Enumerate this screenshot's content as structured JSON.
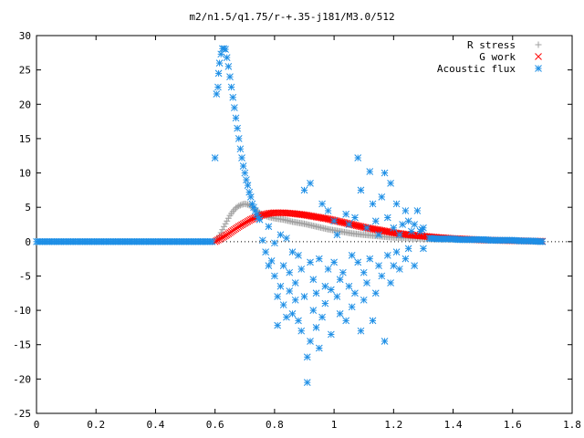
{
  "chart_data": {
    "type": "scatter",
    "title": "m2/n1.5/q1.75/r-+.35-j181/M3.0/512",
    "xlim": [
      0,
      1.8
    ],
    "ylim": [
      -25,
      30
    ],
    "xticks": [
      0,
      0.2,
      0.4,
      0.6,
      0.8,
      1,
      1.2,
      1.4,
      1.6,
      1.8
    ],
    "xtick_labels": [
      "0",
      "0.2",
      "0.4",
      "0.6",
      "0.8",
      "1",
      "1.2",
      "1.4",
      "1.6",
      "1.8"
    ],
    "yticks": [
      -25,
      -20,
      -15,
      -10,
      -5,
      0,
      5,
      10,
      15,
      20,
      25,
      30
    ],
    "ytick_labels": [
      "-25",
      "-20",
      "-15",
      "-10",
      "-5",
      "0",
      "5",
      "10",
      "15",
      "20",
      "25",
      "30"
    ],
    "legend_position": "top-right",
    "series": [
      {
        "name": "R stress",
        "color": "#a0a0a0",
        "marker": "plus",
        "points": [
          [
            0.6,
            0.0
          ],
          [
            0.61,
            0.5
          ],
          [
            0.62,
            1.3
          ],
          [
            0.63,
            2.2
          ],
          [
            0.64,
            3.0
          ],
          [
            0.65,
            3.8
          ],
          [
            0.66,
            4.4
          ],
          [
            0.67,
            4.9
          ],
          [
            0.68,
            5.2
          ],
          [
            0.69,
            5.4
          ],
          [
            0.7,
            5.5
          ],
          [
            0.71,
            5.4
          ],
          [
            0.72,
            5.2
          ],
          [
            0.73,
            4.9
          ],
          [
            0.74,
            4.5
          ],
          [
            0.75,
            4.2
          ],
          [
            0.76,
            3.9
          ],
          [
            0.78,
            3.6
          ],
          [
            0.8,
            3.4
          ],
          [
            0.83,
            3.2
          ],
          [
            0.86,
            2.9
          ],
          [
            0.9,
            2.6
          ],
          [
            0.94,
            2.2
          ],
          [
            0.98,
            1.8
          ],
          [
            1.02,
            1.5
          ],
          [
            1.06,
            1.2
          ],
          [
            1.1,
            1.0
          ],
          [
            1.15,
            0.8
          ],
          [
            1.2,
            0.6
          ],
          [
            1.25,
            0.5
          ],
          [
            1.3,
            0.4
          ],
          [
            1.35,
            0.35
          ],
          [
            1.4,
            0.3
          ],
          [
            1.45,
            0.25
          ],
          [
            1.5,
            0.2
          ],
          [
            1.55,
            0.15
          ],
          [
            1.6,
            0.1
          ],
          [
            1.65,
            0.05
          ],
          [
            1.7,
            0.0
          ]
        ]
      },
      {
        "name": "G work",
        "color": "#ff0000",
        "marker": "cross",
        "points": [
          [
            0.6,
            0.0
          ],
          [
            0.62,
            0.5
          ],
          [
            0.64,
            1.0
          ],
          [
            0.66,
            1.6
          ],
          [
            0.68,
            2.2
          ],
          [
            0.7,
            2.7
          ],
          [
            0.72,
            3.2
          ],
          [
            0.74,
            3.6
          ],
          [
            0.76,
            3.9
          ],
          [
            0.78,
            4.1
          ],
          [
            0.8,
            4.2
          ],
          [
            0.83,
            4.2
          ],
          [
            0.86,
            4.1
          ],
          [
            0.9,
            3.9
          ],
          [
            0.94,
            3.6
          ],
          [
            0.98,
            3.3
          ],
          [
            1.02,
            2.9
          ],
          [
            1.06,
            2.5
          ],
          [
            1.1,
            2.1
          ],
          [
            1.15,
            1.7
          ],
          [
            1.2,
            1.3
          ],
          [
            1.25,
            1.0
          ],
          [
            1.3,
            0.8
          ],
          [
            1.35,
            0.6
          ],
          [
            1.4,
            0.45
          ],
          [
            1.45,
            0.35
          ],
          [
            1.5,
            0.25
          ],
          [
            1.55,
            0.2
          ],
          [
            1.6,
            0.15
          ],
          [
            1.65,
            0.1
          ],
          [
            1.7,
            0.05
          ]
        ]
      },
      {
        "name": "Acoustic flux",
        "color": "#1e8fe6",
        "marker": "star",
        "points": [
          [
            0.0,
            0.0
          ],
          [
            0.05,
            0.0
          ],
          [
            0.1,
            0.0
          ],
          [
            0.15,
            0.0
          ],
          [
            0.2,
            0.0
          ],
          [
            0.25,
            0.0
          ],
          [
            0.3,
            0.0
          ],
          [
            0.35,
            0.0
          ],
          [
            0.4,
            0.0
          ],
          [
            0.45,
            0.0
          ],
          [
            0.5,
            0.0
          ],
          [
            0.55,
            0.0
          ],
          [
            0.59,
            0.0
          ],
          [
            0.6,
            12.2
          ],
          [
            0.605,
            21.5
          ],
          [
            0.61,
            22.5
          ],
          [
            0.612,
            24.5
          ],
          [
            0.615,
            26.0
          ],
          [
            0.62,
            27.3
          ],
          [
            0.625,
            28.1
          ],
          [
            0.63,
            28.1
          ],
          [
            0.635,
            28.0
          ],
          [
            0.64,
            26.8
          ],
          [
            0.645,
            25.5
          ],
          [
            0.65,
            24.0
          ],
          [
            0.655,
            22.5
          ],
          [
            0.66,
            21.0
          ],
          [
            0.665,
            19.5
          ],
          [
            0.67,
            18.0
          ],
          [
            0.675,
            16.5
          ],
          [
            0.68,
            15.0
          ],
          [
            0.685,
            13.5
          ],
          [
            0.69,
            12.2
          ],
          [
            0.695,
            11.0
          ],
          [
            0.7,
            10.0
          ],
          [
            0.705,
            9.0
          ],
          [
            0.71,
            8.2
          ],
          [
            0.715,
            7.2
          ],
          [
            0.72,
            6.5
          ],
          [
            0.725,
            5.5
          ],
          [
            0.73,
            5.0
          ],
          [
            0.735,
            4.5
          ],
          [
            0.74,
            4.0
          ],
          [
            0.745,
            3.5
          ],
          [
            0.75,
            3.2
          ],
          [
            0.76,
            0.2
          ],
          [
            0.77,
            -1.5
          ],
          [
            0.78,
            -3.5
          ],
          [
            0.78,
            2.2
          ],
          [
            0.79,
            -2.8
          ],
          [
            0.8,
            -0.2
          ],
          [
            0.8,
            -5.0
          ],
          [
            0.81,
            -8.0
          ],
          [
            0.81,
            -12.2
          ],
          [
            0.82,
            -6.5
          ],
          [
            0.82,
            1.0
          ],
          [
            0.83,
            -9.2
          ],
          [
            0.83,
            -3.5
          ],
          [
            0.84,
            -11.0
          ],
          [
            0.84,
            0.5
          ],
          [
            0.85,
            -7.2
          ],
          [
            0.85,
            -4.5
          ],
          [
            0.86,
            -10.5
          ],
          [
            0.86,
            -1.5
          ],
          [
            0.87,
            -8.5
          ],
          [
            0.87,
            -6.0
          ],
          [
            0.88,
            -11.5
          ],
          [
            0.88,
            -2.0
          ],
          [
            0.89,
            -13.0
          ],
          [
            0.89,
            -4.0
          ],
          [
            0.9,
            7.5
          ],
          [
            0.9,
            -8.0
          ],
          [
            0.91,
            -20.5
          ],
          [
            0.91,
            -16.8
          ],
          [
            0.92,
            -14.5
          ],
          [
            0.92,
            -3.0
          ],
          [
            0.92,
            8.5
          ],
          [
            0.93,
            -10.0
          ],
          [
            0.93,
            -5.5
          ],
          [
            0.94,
            -7.5
          ],
          [
            0.94,
            -12.5
          ],
          [
            0.95,
            -2.5
          ],
          [
            0.95,
            -15.5
          ],
          [
            0.96,
            -11.0
          ],
          [
            0.96,
            5.5
          ],
          [
            0.97,
            -6.5
          ],
          [
            0.97,
            -9.0
          ],
          [
            0.98,
            4.5
          ],
          [
            0.98,
            -4.0
          ],
          [
            0.99,
            -13.5
          ],
          [
            0.99,
            -7.0
          ],
          [
            1.0,
            -3.0
          ],
          [
            1.0,
            3.0
          ],
          [
            1.01,
            -8.0
          ],
          [
            1.01,
            1.0
          ],
          [
            1.02,
            -5.5
          ],
          [
            1.02,
            -10.5
          ],
          [
            1.03,
            -4.5
          ],
          [
            1.04,
            4.0
          ],
          [
            1.04,
            -11.5
          ],
          [
            1.05,
            2.5
          ],
          [
            1.05,
            -6.5
          ],
          [
            1.06,
            -2.0
          ],
          [
            1.06,
            -9.5
          ],
          [
            1.07,
            3.5
          ],
          [
            1.07,
            -7.5
          ],
          [
            1.08,
            12.2
          ],
          [
            1.08,
            -3.0
          ],
          [
            1.09,
            -13.0
          ],
          [
            1.09,
            7.5
          ],
          [
            1.1,
            -4.5
          ],
          [
            1.1,
            -8.5
          ],
          [
            1.11,
            2.0
          ],
          [
            1.11,
            -6.0
          ],
          [
            1.12,
            10.2
          ],
          [
            1.12,
            -2.5
          ],
          [
            1.13,
            5.5
          ],
          [
            1.13,
            -11.5
          ],
          [
            1.14,
            -7.5
          ],
          [
            1.14,
            3.0
          ],
          [
            1.15,
            1.0
          ],
          [
            1.15,
            -3.5
          ],
          [
            1.16,
            6.5
          ],
          [
            1.16,
            -5.0
          ],
          [
            1.17,
            10.0
          ],
          [
            1.17,
            -14.5
          ],
          [
            1.18,
            -2.0
          ],
          [
            1.18,
            3.5
          ],
          [
            1.19,
            8.5
          ],
          [
            1.19,
            -6.0
          ],
          [
            1.2,
            2.0
          ],
          [
            1.2,
            -3.5
          ],
          [
            1.21,
            5.5
          ],
          [
            1.21,
            -1.5
          ],
          [
            1.22,
            1.0
          ],
          [
            1.22,
            -4.0
          ],
          [
            1.23,
            2.5
          ],
          [
            1.24,
            -2.5
          ],
          [
            1.24,
            4.5
          ],
          [
            1.25,
            3.0
          ],
          [
            1.25,
            -1.0
          ],
          [
            1.26,
            1.5
          ],
          [
            1.27,
            2.5
          ],
          [
            1.27,
            -3.5
          ],
          [
            1.28,
            4.5
          ],
          [
            1.29,
            1.5
          ],
          [
            1.3,
            2.0
          ],
          [
            1.3,
            -1.0
          ],
          [
            1.32,
            0.5
          ],
          [
            1.35,
            0.4
          ],
          [
            1.38,
            0.4
          ],
          [
            1.4,
            0.4
          ],
          [
            1.42,
            0.3
          ],
          [
            1.45,
            0.3
          ],
          [
            1.48,
            0.3
          ],
          [
            1.5,
            0.3
          ],
          [
            1.53,
            0.2
          ],
          [
            1.56,
            0.2
          ],
          [
            1.6,
            0.2
          ],
          [
            1.63,
            0.1
          ],
          [
            1.66,
            0.1
          ],
          [
            1.7,
            0.0
          ]
        ]
      }
    ]
  }
}
